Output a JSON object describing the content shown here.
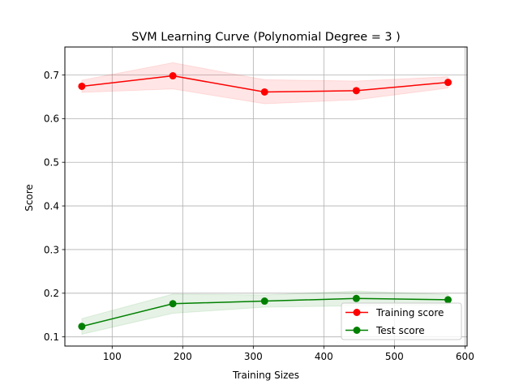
{
  "chart_data": {
    "type": "line",
    "title": "SVM Learning Curve (Polynomial Degree = 3 )",
    "xlabel": "Training Sizes",
    "ylabel": "Score",
    "xlim": [
      33,
      603
    ],
    "ylim": [
      0.079,
      0.764
    ],
    "xticks": [
      100,
      200,
      300,
      400,
      500,
      600
    ],
    "yticks": [
      0.1,
      0.2,
      0.3,
      0.4,
      0.5,
      0.6,
      0.7
    ],
    "xtick_labels": [
      "100",
      "200",
      "300",
      "400",
      "500",
      "600"
    ],
    "ytick_labels": [
      "0.1",
      "0.2",
      "0.3",
      "0.4",
      "0.5",
      "0.6",
      "0.7"
    ],
    "grid": true,
    "legend_position": "lower-right",
    "x": [
      57,
      186,
      316,
      446,
      576
    ],
    "series": [
      {
        "name": "Training score",
        "color": "#ff0000",
        "values": [
          0.674,
          0.698,
          0.661,
          0.664,
          0.683
        ],
        "band_upper": [
          0.688,
          0.728,
          0.689,
          0.686,
          0.696
        ],
        "band_lower": [
          0.66,
          0.668,
          0.634,
          0.643,
          0.67
        ]
      },
      {
        "name": "Test score",
        "color": "#008000",
        "values": [
          0.124,
          0.176,
          0.182,
          0.188,
          0.185
        ],
        "band_upper": [
          0.142,
          0.198,
          0.196,
          0.205,
          0.197
        ],
        "band_lower": [
          0.106,
          0.154,
          0.168,
          0.171,
          0.173
        ]
      }
    ]
  }
}
